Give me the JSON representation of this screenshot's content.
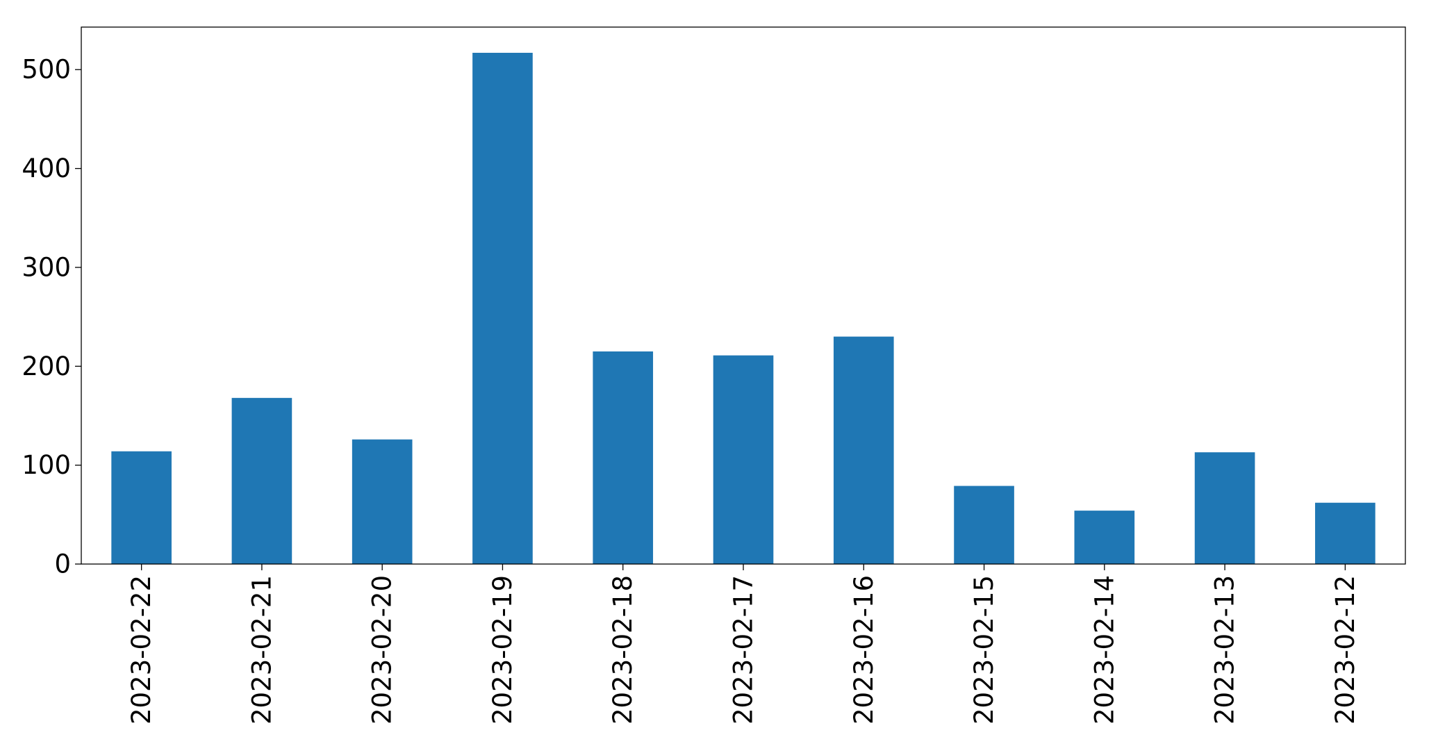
{
  "chart_data": {
    "type": "bar",
    "categories": [
      "2023-02-22",
      "2023-02-21",
      "2023-02-20",
      "2023-02-19",
      "2023-02-18",
      "2023-02-17",
      "2023-02-16",
      "2023-02-15",
      "2023-02-14",
      "2023-02-13",
      "2023-02-12"
    ],
    "values": [
      114,
      168,
      126,
      517,
      215,
      211,
      230,
      79,
      54,
      113,
      62
    ],
    "title": "",
    "xlabel": "",
    "ylabel": "",
    "ylim": [
      0,
      543
    ],
    "yticks": [
      0,
      100,
      200,
      300,
      400,
      500
    ],
    "ytick_labels": [
      "0",
      "100",
      "200",
      "300",
      "400",
      "500"
    ],
    "grid": false,
    "legend": "none",
    "bar_color": "#1f77b4"
  }
}
